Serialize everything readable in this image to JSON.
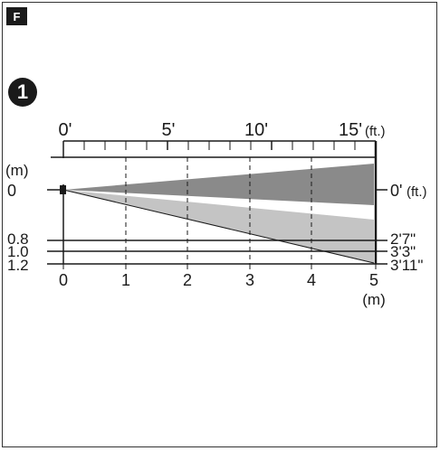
{
  "figure_label": "F",
  "step_number": "1",
  "colors": {
    "upper_beam": "#8a8a8a",
    "lower_beam": "#c4c4c4",
    "ink": "#1a1a1a",
    "frame": "#333333"
  },
  "feet_scale": {
    "unit_label": "(ft.)",
    "ticks": [
      {
        "value": 0,
        "label": "0'"
      },
      {
        "value": 5,
        "label": "5'"
      },
      {
        "value": 10,
        "label": "10'"
      },
      {
        "value": 15,
        "label": "15'"
      }
    ]
  },
  "meter_scale": {
    "unit_label": "(m)",
    "ticks": [
      "0",
      "1",
      "2",
      "3",
      "4",
      "5"
    ]
  },
  "left_axis": {
    "unit_label": "(m)",
    "labels": [
      "0",
      "0.8",
      "1.0",
      "1.2"
    ]
  },
  "right_axis": {
    "unit_label": "(ft.)",
    "labels": [
      "0'",
      "2'7\"",
      "3'3\"",
      "3'11\""
    ]
  }
}
